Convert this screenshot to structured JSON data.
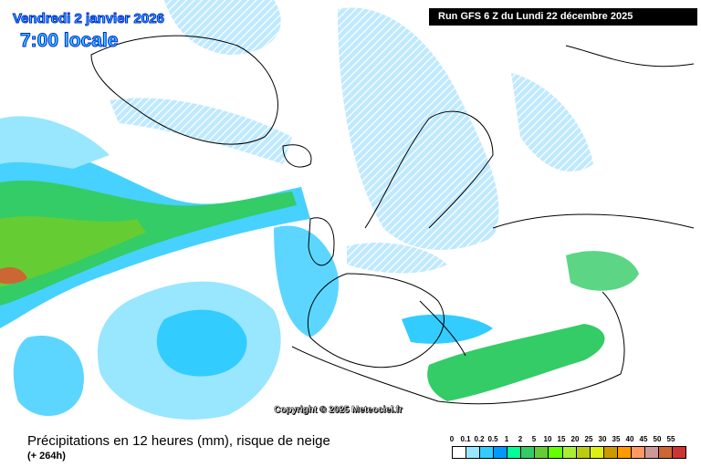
{
  "header": {
    "date": "Vendredi 2 janvier 2026",
    "time": "7:00 locale",
    "run": "Run GFS 6 Z du Lundi 22 décembre 2025"
  },
  "copyright": "Copyright © 2025 Meteociel.fr",
  "footer": {
    "title": "Précipitations en 12 heures (mm), risque de neige",
    "lead": "(+ 264h)"
  },
  "legend": {
    "labels": [
      "0",
      "0.1",
      "0.2",
      "0.5",
      "1",
      "2",
      "5",
      "10",
      "15",
      "20",
      "25",
      "30",
      "35",
      "40",
      "45",
      "50",
      "55"
    ],
    "colors": [
      "#ffffff",
      "#99e6ff",
      "#33ccff",
      "#0099ff",
      "#00ff99",
      "#33cc66",
      "#66cc33",
      "#66ff00",
      "#aaee33",
      "#bbcc11",
      "#ddee11",
      "#cc9900",
      "#ff9900",
      "#ff9966",
      "#cc9999",
      "#cc6633",
      "#cc3333"
    ]
  }
}
